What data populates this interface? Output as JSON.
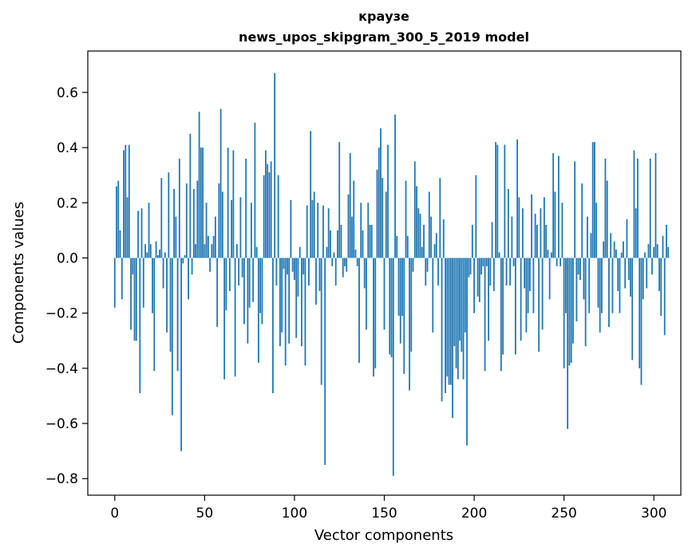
{
  "chart_data": {
    "type": "bar",
    "title": "крaузе",
    "subtitle": "news_upos_skipgram_300_5_2019 model",
    "xlabel": "Vector components",
    "ylabel": "Components values",
    "xlim": [
      -15,
      315
    ],
    "ylim": [
      -0.86,
      0.75
    ],
    "xticks": [
      0,
      50,
      100,
      150,
      200,
      250,
      300
    ],
    "yticks": [
      -0.8,
      -0.6,
      -0.4,
      -0.2,
      0.0,
      0.2,
      0.4,
      0.6
    ],
    "ytick_labels": [
      "−0.8",
      "−0.6",
      "−0.4",
      "−0.2",
      "0.0",
      "0.2",
      "0.4",
      "0.6"
    ],
    "bar_color": "#1f77b4",
    "grid": false,
    "values": [
      -0.18,
      0.26,
      0.28,
      0.1,
      -0.15,
      0.39,
      0.41,
      0.22,
      0.41,
      -0.26,
      -0.06,
      -0.3,
      -0.3,
      0.17,
      -0.49,
      0.18,
      -0.18,
      0.05,
      0.02,
      0.2,
      0.05,
      -0.2,
      -0.41,
      0.06,
      0.01,
      0.03,
      0.29,
      -0.11,
      0.02,
      -0.27,
      0.31,
      -0.34,
      -0.57,
      0.25,
      0.15,
      -0.41,
      0.36,
      -0.7,
      -0.02,
      0.01,
      0.27,
      -0.15,
      0.45,
      -0.06,
      0.25,
      0.05,
      0.28,
      0.53,
      0.4,
      0.4,
      0.05,
      0.2,
      0.08,
      -0.05,
      0.05,
      0.08,
      0.15,
      -0.25,
      0.27,
      0.54,
      0.24,
      -0.44,
      -0.19,
      0.4,
      -0.12,
      0.21,
      0.39,
      -0.43,
      0.05,
      -0.1,
      0.22,
      -0.07,
      -0.24,
      0.36,
      -0.31,
      -0.18,
      0.2,
      -0.16,
      0.49,
      0.04,
      -0.38,
      -0.2,
      -0.24,
      0.3,
      0.39,
      0.34,
      0.31,
      0.35,
      -0.49,
      0.67,
      -0.1,
      0.3,
      -0.32,
      -0.27,
      -0.04,
      -0.39,
      -0.06,
      -0.31,
      0.21,
      -0.05,
      -0.08,
      -0.29,
      -0.14,
      0.04,
      -0.32,
      -0.06,
      -0.39,
      0.19,
      -0.1,
      0.46,
      0.21,
      0.24,
      -0.17,
      0.2,
      -0.12,
      -0.46,
      0.19,
      -0.75,
      0.04,
      0.18,
      0.1,
      -0.03,
      0.02,
      -0.1,
      0.1,
      0.42,
      0.12,
      -0.07,
      -0.03,
      -0.05,
      0.23,
      0.38,
      0.15,
      0.28,
      0.03,
      -0.03,
      -0.38,
      0.2,
      0.1,
      -0.11,
      -0.26,
      0.2,
      0.12,
      0.12,
      -0.43,
      -0.4,
      0.32,
      0.4,
      0.47,
      0.29,
      -0.26,
      0.24,
      0.41,
      -0.35,
      -0.36,
      -0.79,
      0.52,
      0.08,
      -0.21,
      -0.31,
      -0.21,
      -0.42,
      0.28,
      0.08,
      -0.48,
      -0.34,
      -0.05,
      0.35,
      0.26,
      0.18,
      0.16,
      0.04,
      0.12,
      -0.1,
      -0.05,
      0.24,
      0.15,
      -0.27,
      0.05,
      0.09,
      -0.1,
      0.29,
      -0.52,
      0.14,
      -0.49,
      -0.43,
      -0.46,
      -0.46,
      -0.58,
      -0.32,
      -0.4,
      -0.44,
      -0.3,
      -0.34,
      -0.44,
      -0.27,
      -0.68,
      -0.07,
      -0.06,
      0.12,
      -0.2,
      0.3,
      -0.14,
      -0.16,
      -0.06,
      -0.03,
      -0.41,
      -0.03,
      -0.3,
      -0.1,
      0.13,
      -0.12,
      0.42,
      0.41,
      0.02,
      -0.41,
      -0.35,
      0.41,
      -0.1,
      0.25,
      -0.1,
      0.15,
      -0.03,
      -0.35,
      0.43,
      0.22,
      -0.3,
      0.18,
      -0.11,
      -0.27,
      -0.2,
      -0.12,
      0.23,
      -0.2,
      0.16,
      0.12,
      -0.34,
      0.18,
      -0.26,
      0.22,
      0.12,
      0.03,
      -0.15,
      0.02,
      0.38,
      0.24,
      -0.03,
      0.37,
      -0.03,
      0.2,
      -0.4,
      -0.2,
      -0.62,
      -0.39,
      -0.38,
      -0.31,
      0.35,
      -0.23,
      -0.06,
      -0.08,
      0.27,
      -0.15,
      -0.32,
      0.15,
      -0.2,
      0.09,
      0.42,
      0.42,
      0.2,
      -0.18,
      -0.27,
      -0.2,
      0.06,
      0.36,
      0.28,
      -0.25,
      0.09,
      -0.2,
      0.06,
      0.03,
      -0.12,
      -0.2,
      0.02,
      0.06,
      -0.11,
      0.14,
      -0.08,
      -0.14,
      -0.37,
      0.39,
      0.18,
      0.36,
      -0.4,
      -0.46,
      -0.15,
      0.02,
      -0.11,
      0.05,
      0.36,
      -0.06,
      0.04,
      0.38,
      0.05,
      -0.12,
      -0.21,
      0.08,
      -0.28,
      0.12,
      0.04
    ]
  }
}
